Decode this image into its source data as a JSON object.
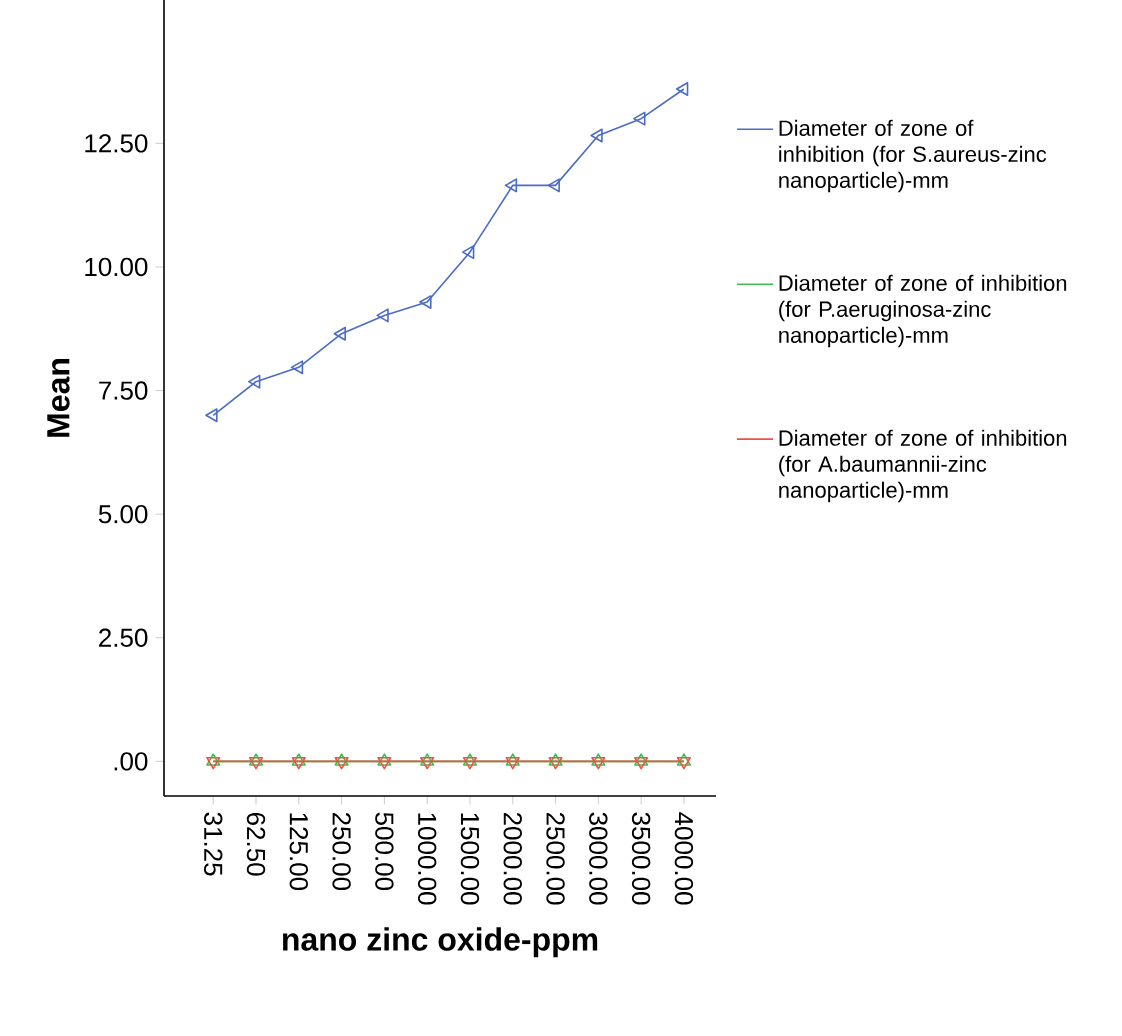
{
  "chart_data": {
    "type": "line",
    "xlabel": "nano zinc oxide-ppm",
    "ylabel": "Mean",
    "categories": [
      "31.25",
      "62.50",
      "125.00",
      "250.00",
      "500.00",
      "1000.00",
      "1500.00",
      "2000.00",
      "2500.00",
      "3000.00",
      "3500.00",
      "4000.00"
    ],
    "ylim": [
      -0.7,
      15.4
    ],
    "yticks": [
      {
        "value": 0,
        "label": ".00"
      },
      {
        "value": 2.5,
        "label": "2.50"
      },
      {
        "value": 5,
        "label": "5.00"
      },
      {
        "value": 7.5,
        "label": "7.50"
      },
      {
        "value": 10,
        "label": "10.00"
      },
      {
        "value": 12.5,
        "label": "12.50"
      }
    ],
    "series": [
      {
        "name": "Diameter of zone of inhibition (for S.aureus-zinc nanoparticle)-mm",
        "color": "#4a6bc8",
        "values": [
          7.0,
          7.68,
          7.97,
          8.65,
          9.02,
          9.29,
          10.3,
          11.65,
          11.65,
          12.66,
          13.0,
          13.6
        ]
      },
      {
        "name": "Diameter of zone of inhibition (for P.aeruginosa-zinc nanoparticle)-mm",
        "color": "#3cbf4a",
        "values": [
          0,
          0,
          0,
          0,
          0,
          0,
          0,
          0,
          0,
          0,
          0,
          0
        ]
      },
      {
        "name": "Diameter of zone of inhibition (for A.baumannii-zinc nanoparticle)-mm",
        "color": "#f0504a",
        "values": [
          0,
          0,
          0,
          0,
          0,
          0,
          0,
          0,
          0,
          0,
          0,
          0
        ]
      }
    ],
    "marker": "triangle",
    "legend": "right",
    "grid": false
  }
}
